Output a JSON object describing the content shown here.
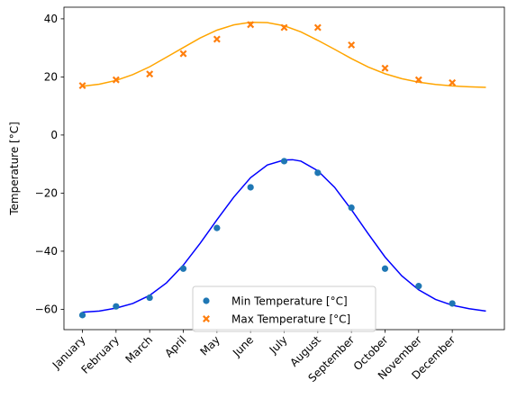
{
  "chart_data": {
    "type": "scatter",
    "categories": [
      "January",
      "February",
      "March",
      "April",
      "May",
      "June",
      "July",
      "August",
      "September",
      "October",
      "November",
      "December"
    ],
    "ylabel": "Temperature [°C]",
    "xlabel": "",
    "title": "",
    "ylim": [
      -67,
      44
    ],
    "yticks": [
      -60,
      -40,
      -20,
      0,
      20,
      40
    ],
    "x_rotation_deg": 45,
    "grid": false,
    "legend_position": "lower center",
    "series": [
      {
        "name": "Min Temperature [°C]",
        "marker": "circle",
        "color": "#1f77b4",
        "values": [
          -62,
          -59,
          -56,
          -46,
          -32,
          -18,
          -9,
          -13,
          -25,
          -46,
          -52,
          -58
        ]
      },
      {
        "name": "Max Temperature [°C]",
        "marker": "x",
        "color": "#ff7f0e",
        "values": [
          17,
          19,
          21,
          28,
          33,
          38,
          37,
          37,
          31,
          23,
          19,
          18
        ]
      }
    ],
    "fits": [
      {
        "series": "Min Temperature [°C]",
        "color": "#0000ff",
        "x": [
          0,
          0.5,
          1,
          1.5,
          2,
          2.5,
          3,
          3.5,
          4,
          4.5,
          5,
          5.5,
          6,
          6.25,
          6.5,
          7,
          7.5,
          8,
          8.5,
          9,
          9.5,
          10,
          10.5,
          11,
          11.5,
          12
        ],
        "y": [
          -61,
          -60.6,
          -59.6,
          -58,
          -55.2,
          -50.9,
          -44.8,
          -37.3,
          -29.2,
          -21.4,
          -14.7,
          -10.3,
          -8.6,
          -8.5,
          -9,
          -12.3,
          -18,
          -25.7,
          -34,
          -42,
          -48.5,
          -53.3,
          -56.6,
          -58.6,
          -59.8,
          -60.6
        ]
      },
      {
        "series": "Max Temperature [°C]",
        "color": "#ffa500",
        "x": [
          0,
          0.5,
          1,
          1.5,
          2,
          2.5,
          3,
          3.5,
          4,
          4.5,
          5,
          5.5,
          6,
          6.5,
          7,
          7.5,
          8,
          8.5,
          9,
          9.5,
          10,
          10.5,
          11,
          11.5,
          12
        ],
        "y": [
          16.8,
          17.5,
          18.8,
          20.8,
          23.5,
          26.8,
          30.1,
          33.4,
          36.1,
          37.9,
          38.8,
          38.7,
          37.6,
          35.5,
          32.6,
          29.5,
          26.3,
          23.4,
          21.1,
          19.4,
          18.2,
          17.4,
          16.9,
          16.6,
          16.4
        ]
      }
    ]
  }
}
